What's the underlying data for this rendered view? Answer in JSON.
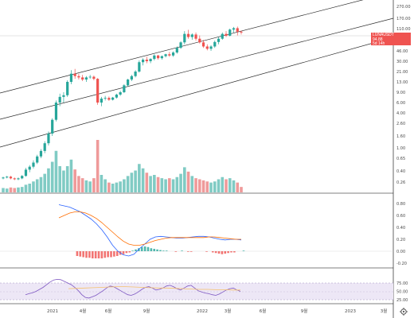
{
  "symbol_badge": {
    "symbol": "LUNAUSDT",
    "price": "94.88",
    "countdown": "5d 14h",
    "color": "#ef5350"
  },
  "colors": {
    "up": "#26a69a",
    "down": "#ef5350",
    "volume_up": "#80cbc4",
    "volume_down": "#ef9a9a",
    "macd_line": "#2962ff",
    "signal_line": "#ff6d00",
    "rsi_line": "#7e57c2",
    "rsi_band": "#ede7f6",
    "signal_rsi": "#f5c16c",
    "grid": "#000000"
  },
  "chart_data": [
    {
      "type": "candlestick",
      "title": "",
      "y_scale": "log",
      "y_ticks": [
        "270.00",
        "170.00",
        "110.00",
        "70.00",
        "46.00",
        "30.00",
        "21.00",
        "13.00",
        "9.00",
        "6.00",
        "4.00",
        "2.60",
        "1.60",
        "1.00",
        "0.65",
        "0.40",
        "0.26"
      ],
      "x_ticks": [
        "2021",
        "4월",
        "6월",
        "9월",
        "2022",
        "3월",
        "6월",
        "9월",
        "2023",
        "3월"
      ],
      "last_price": 94.88,
      "ohlc": [
        [
          0.3,
          0.32,
          0.29,
          0.31
        ],
        [
          0.31,
          0.33,
          0.3,
          0.32
        ],
        [
          0.32,
          0.33,
          0.29,
          0.3
        ],
        [
          0.3,
          0.31,
          0.28,
          0.29
        ],
        [
          0.29,
          0.31,
          0.28,
          0.3
        ],
        [
          0.3,
          0.34,
          0.29,
          0.33
        ],
        [
          0.33,
          0.45,
          0.32,
          0.42
        ],
        [
          0.42,
          0.5,
          0.38,
          0.47
        ],
        [
          0.47,
          0.6,
          0.44,
          0.55
        ],
        [
          0.55,
          0.75,
          0.52,
          0.7
        ],
        [
          0.7,
          0.95,
          0.65,
          0.88
        ],
        [
          0.88,
          1.3,
          0.8,
          1.2
        ],
        [
          1.2,
          1.9,
          1.1,
          1.75
        ],
        [
          1.75,
          3.2,
          1.6,
          3.0
        ],
        [
          3.0,
          6.5,
          2.8,
          6.0
        ],
        [
          6.0,
          8.5,
          5.2,
          7.5
        ],
        [
          7.5,
          9.0,
          6.0,
          8.0
        ],
        [
          8.0,
          14.0,
          7.5,
          13.0
        ],
        [
          13.0,
          22.0,
          12.0,
          19.0
        ],
        [
          19.0,
          23.0,
          15.0,
          17.0
        ],
        [
          17.0,
          19.0,
          14.5,
          16.0
        ],
        [
          16.0,
          18.0,
          13.5,
          14.5
        ],
        [
          14.5,
          17.0,
          13.0,
          16.0
        ],
        [
          16.0,
          18.0,
          15.0,
          16.5
        ],
        [
          16.5,
          17.5,
          14.0,
          15.0
        ],
        [
          15.0,
          15.5,
          5.5,
          6.0
        ],
        [
          6.0,
          7.5,
          5.2,
          7.0
        ],
        [
          7.0,
          7.8,
          6.5,
          7.2
        ],
        [
          7.2,
          7.6,
          6.4,
          6.7
        ],
        [
          6.7,
          7.5,
          6.5,
          7.3
        ],
        [
          7.3,
          8.5,
          7.0,
          8.2
        ],
        [
          8.2,
          9.5,
          7.8,
          9.0
        ],
        [
          9.0,
          12.0,
          8.7,
          11.5
        ],
        [
          11.5,
          15.0,
          11.0,
          14.5
        ],
        [
          14.5,
          18.0,
          13.5,
          17.0
        ],
        [
          17.0,
          22.0,
          16.0,
          21.0
        ],
        [
          21.0,
          31.0,
          20.0,
          29.0
        ],
        [
          29.0,
          34.0,
          26.0,
          32.0
        ],
        [
          32.0,
          36.0,
          28.0,
          30.0
        ],
        [
          30.0,
          34.0,
          28.0,
          33.0
        ],
        [
          33.0,
          40.0,
          31.0,
          38.0
        ],
        [
          38.0,
          39.0,
          32.0,
          34.0
        ],
        [
          34.0,
          38.0,
          32.0,
          37.0
        ],
        [
          37.0,
          41.0,
          35.0,
          40.0
        ],
        [
          40.0,
          44.0,
          36.0,
          38.0
        ],
        [
          38.0,
          45.0,
          36.0,
          43.0
        ],
        [
          43.0,
          55.0,
          41.0,
          52.0
        ],
        [
          52.0,
          68.0,
          50.0,
          65.0
        ],
        [
          65.0,
          100.0,
          60.0,
          90.0
        ],
        [
          90.0,
          105.0,
          75.0,
          80.0
        ],
        [
          80.0,
          92.0,
          72.0,
          88.0
        ],
        [
          88.0,
          95.0,
          70.0,
          75.0
        ],
        [
          75.0,
          85.0,
          62.0,
          65.0
        ],
        [
          65.0,
          72.0,
          52.0,
          55.0
        ],
        [
          55.0,
          60.0,
          47.0,
          50.0
        ],
        [
          50.0,
          58.0,
          46.0,
          55.0
        ],
        [
          55.0,
          70.0,
          52.0,
          66.0
        ],
        [
          66.0,
          80.0,
          60.0,
          75.0
        ],
        [
          75.0,
          95.0,
          72.0,
          90.0
        ],
        [
          90.0,
          100.0,
          80.0,
          84.0
        ],
        [
          84.0,
          110.0,
          82.0,
          106.0
        ],
        [
          106.0,
          118.0,
          95.0,
          112.0
        ],
        [
          112.0,
          120.0,
          85.0,
          98.0
        ],
        [
          98.0,
          102.0,
          88.0,
          94.88
        ]
      ],
      "volume": [
        0.8,
        0.7,
        0.9,
        0.8,
        0.9,
        1.0,
        1.4,
        1.6,
        2.0,
        2.4,
        2.8,
        3.4,
        4.4,
        5.6,
        7.6,
        4.8,
        4.0,
        4.8,
        6.0,
        4.2,
        3.0,
        2.6,
        2.2,
        2.0,
        2.6,
        9.6,
        3.2,
        2.4,
        1.8,
        1.6,
        1.8,
        2.0,
        2.4,
        3.0,
        3.6,
        4.0,
        5.2,
        4.4,
        3.6,
        3.0,
        3.2,
        2.8,
        2.6,
        2.4,
        2.6,
        2.4,
        2.8,
        3.4,
        4.6,
        3.8,
        3.0,
        2.6,
        2.4,
        2.2,
        2.0,
        1.8,
        2.0,
        2.4,
        2.8,
        2.4,
        2.6,
        2.2,
        1.8,
        1.0
      ]
    },
    {
      "type": "line",
      "title": "",
      "y_ticks": [
        "0.80",
        "0.60",
        "0.40",
        "0.20",
        "0.00",
        "-0.20"
      ],
      "ylim": [
        -0.25,
        0.88
      ],
      "series": [
        {
          "values": [
            0.78,
            0.76,
            0.74,
            0.7,
            0.66,
            0.6,
            0.54,
            0.46,
            0.36,
            0.24,
            0.1,
            0.0,
            -0.06,
            -0.08,
            -0.05,
            0.04,
            0.12,
            0.2,
            0.24,
            0.25,
            0.24,
            0.23,
            0.22,
            0.22,
            0.23,
            0.24,
            0.25,
            0.25,
            0.24,
            0.22,
            0.2,
            0.19,
            0.2,
            0.2,
            0.19
          ]
        },
        {
          "values": [
            0.56,
            0.6,
            0.64,
            0.66,
            0.66,
            0.64,
            0.6,
            0.55,
            0.48,
            0.4,
            0.32,
            0.24,
            0.17,
            0.12,
            0.1,
            0.1,
            0.12,
            0.15,
            0.18,
            0.2,
            0.22,
            0.23,
            0.23,
            0.23,
            0.23,
            0.23,
            0.23,
            0.23,
            0.24,
            0.24,
            0.23,
            0.22,
            0.21,
            0.2,
            0.2
          ]
        }
      ],
      "histogram": [
        0.0,
        0.0,
        0.0,
        0.0,
        0.0,
        0.0,
        0.0,
        0.0,
        0.0,
        0.0,
        0.0,
        0.0,
        0.0,
        0.0,
        0.0,
        0.0,
        0.0,
        0.0,
        0.0,
        0.0,
        0.0,
        0.0,
        0.0,
        0.0,
        -0.08,
        -0.09,
        -0.1,
        -0.11,
        -0.11,
        -0.12,
        -0.12,
        -0.12,
        -0.12,
        -0.11,
        -0.1,
        -0.1,
        -0.09,
        -0.08,
        -0.06,
        -0.05,
        -0.03,
        -0.02,
        0.01,
        0.03,
        0.05,
        0.07,
        0.08,
        0.07,
        0.05,
        0.04,
        0.03,
        0.02,
        0.01,
        0.01,
        0.0,
        0.0,
        -0.01,
        0.0,
        0.01,
        0.0,
        -0.01,
        -0.01,
        0.0,
        0.0,
        0.0,
        0.0,
        -0.01,
        0.0,
        -0.02,
        -0.03,
        -0.04,
        -0.05,
        -0.04,
        -0.03,
        -0.02,
        -0.02,
        0.0,
        0.0,
        0.01
      ]
    },
    {
      "type": "line",
      "title": "",
      "y_ticks": [
        "75.00",
        "50.00",
        "25.00"
      ],
      "ylim": [
        20,
        92
      ],
      "series": [
        {
          "values": [
            40,
            43,
            46,
            50,
            56,
            62,
            70,
            78,
            84,
            86,
            85,
            80,
            75,
            70,
            62,
            52,
            40,
            32,
            30,
            34,
            38,
            45,
            52,
            60,
            66,
            64,
            58,
            52,
            46,
            40,
            38,
            42,
            48,
            56,
            62,
            64,
            60,
            54,
            56,
            60,
            66,
            68,
            64,
            58,
            54,
            60,
            66,
            68,
            60,
            52,
            48,
            45,
            43,
            40,
            38,
            42,
            48,
            54,
            58,
            60,
            54,
            50
          ]
        },
        {
          "values": [
            58,
            59,
            60,
            61,
            62,
            63,
            64,
            64,
            63,
            62,
            61,
            60,
            60,
            59,
            58,
            57,
            56,
            56,
            55,
            55,
            54,
            54
          ]
        }
      ]
    }
  ]
}
